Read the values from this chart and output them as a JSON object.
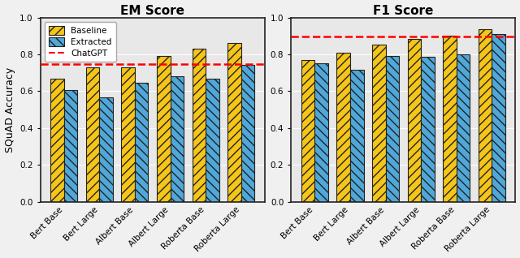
{
  "categories": [
    "Bert Base",
    "Bert Large",
    "Albert Base",
    "Albert Large",
    "Roberta Base",
    "Roberta Large"
  ],
  "em_baseline": [
    0.67,
    0.73,
    0.73,
    0.793,
    0.83,
    0.862
  ],
  "em_extracted": [
    0.608,
    0.568,
    0.645,
    0.682,
    0.67,
    0.742
  ],
  "em_chatgpt": 0.747,
  "f1_baseline": [
    0.77,
    0.81,
    0.852,
    0.882,
    0.903,
    0.935
  ],
  "f1_extracted": [
    0.75,
    0.718,
    0.79,
    0.788,
    0.8,
    0.912
  ],
  "f1_chatgpt": 0.896,
  "color_baseline": "#F5C518",
  "color_extracted": "#4FA8D9",
  "color_chatgpt": "red",
  "ylabel": "SQuAD Accuracy",
  "title_em": "EM Score",
  "title_f1": "F1 Score",
  "legend_baseline": "Baseline",
  "legend_extracted": "Extracted",
  "legend_chatgpt": "ChatGPT",
  "ylim": [
    0.0,
    1.0
  ],
  "yticks": [
    0.0,
    0.2,
    0.4,
    0.6,
    0.8,
    1.0
  ],
  "bar_width": 0.38,
  "hatch_baseline": "///",
  "hatch_extracted": "\\\\\\",
  "edgecolor": "#222222",
  "facecolor": "#E8E8E8",
  "grid_color": "#FFFFFF",
  "title_fontsize": 11,
  "ylabel_fontsize": 9,
  "tick_fontsize": 7.5,
  "legend_fontsize": 7.5
}
